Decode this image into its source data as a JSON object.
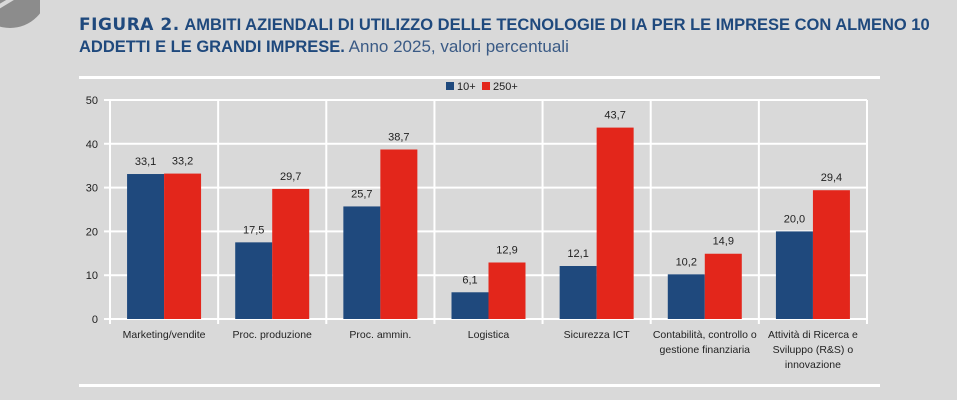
{
  "header": {
    "figure_label": "FIGURA 2.",
    "title": "AMBITI AZIENDALI DI UTILIZZO DELLE TECNOLOGIE DI IA  PER LE IMPRESE CON ALMENO 10 ADDETTI E LE GRANDI IMPRESE.",
    "subtitle": "Anno 2025, valori percentuali"
  },
  "colors": {
    "series_10": "#1f497d",
    "series_250": "#e3261b",
    "title": "#1f497d",
    "background": "#d9d9d9"
  },
  "chart_data": {
    "type": "bar",
    "title": "AMBITI AZIENDALI DI UTILIZZO DELLE TECNOLOGIE DI IA PER LE IMPRESE CON ALMENO 10 ADDETTI E LE GRANDI IMPRESE. Anno 2025, valori percentuali",
    "xlabel": "",
    "ylabel": "",
    "ylim": [
      0,
      50
    ],
    "yticks": [
      0,
      10,
      20,
      30,
      40,
      50
    ],
    "grid": true,
    "legend_position": "top-center",
    "categories": [
      [
        "Marketing/vendite"
      ],
      [
        "Proc. produzione"
      ],
      [
        "Proc. ammin."
      ],
      [
        "Logistica"
      ],
      [
        "Sicurezza ICT"
      ],
      [
        "Contabilità, controllo o",
        "gestione finanziaria"
      ],
      [
        "Attività di Ricerca e",
        "Sviluppo (R&S) o",
        "innovazione"
      ]
    ],
    "series": [
      {
        "name": "10+",
        "color": "#1f497d",
        "values": [
          33.1,
          17.5,
          25.7,
          6.1,
          12.1,
          10.2,
          20.0
        ],
        "labels": [
          "33,1",
          "17,5",
          "25,7",
          "6,1",
          "12,1",
          "10,2",
          "20,0"
        ]
      },
      {
        "name": "250+",
        "color": "#e3261b",
        "values": [
          33.2,
          29.7,
          38.7,
          12.9,
          43.7,
          14.9,
          29.4
        ],
        "labels": [
          "33,2",
          "29,7",
          "38,7",
          "12,9",
          "43,7",
          "14,9",
          "29,4"
        ]
      }
    ]
  }
}
